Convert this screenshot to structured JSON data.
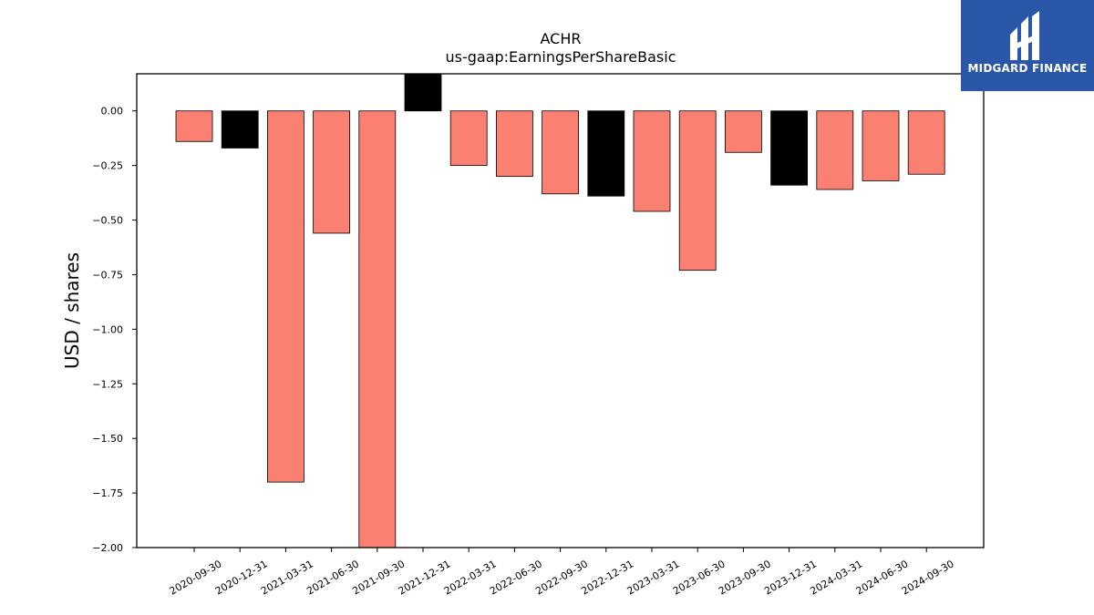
{
  "chart_data": {
    "type": "bar",
    "title": "ACHR",
    "subtitle": "us-gaap:EarningsPerShareBasic",
    "xlabel": "",
    "ylabel": "USD / shares",
    "ylim": [
      -2.0,
      0.17
    ],
    "yticks": [
      0.0,
      -0.25,
      -0.5,
      -0.75,
      -1.0,
      -1.25,
      -1.5,
      -1.75,
      -2.0
    ],
    "ytick_labels": [
      "0.00",
      "−0.25",
      "−0.50",
      "−0.75",
      "−1.00",
      "−1.25",
      "−1.50",
      "−1.75",
      "−2.00"
    ],
    "categories": [
      "2020-09-30",
      "2020-12-31",
      "2021-03-31",
      "2021-06-30",
      "2021-09-30",
      "2021-12-31",
      "2022-03-31",
      "2022-06-30",
      "2022-09-30",
      "2022-12-31",
      "2023-03-31",
      "2023-06-30",
      "2023-09-30",
      "2023-12-31",
      "2024-03-31",
      "2024-06-30",
      "2024-09-30"
    ],
    "values": [
      -0.14,
      -0.17,
      -1.7,
      -0.56,
      -2.0,
      0.17,
      -0.25,
      -0.3,
      -0.38,
      -0.39,
      -0.46,
      -0.73,
      -0.19,
      -0.34,
      -0.36,
      -0.32,
      -0.29
    ],
    "bar_colors": [
      "#fa8072",
      "#000000",
      "#fa8072",
      "#fa8072",
      "#fa8072",
      "#000000",
      "#fa8072",
      "#fa8072",
      "#fa8072",
      "#000000",
      "#fa8072",
      "#fa8072",
      "#fa8072",
      "#000000",
      "#fa8072",
      "#fa8072",
      "#fa8072"
    ],
    "grid": false,
    "legend": "none"
  },
  "logo": {
    "text": "MIDGARD FINANCE"
  },
  "colors": {
    "quarterly": "#fa8072",
    "fiscal_year_end": "#000000",
    "logo_bg": "#2b57a8"
  }
}
